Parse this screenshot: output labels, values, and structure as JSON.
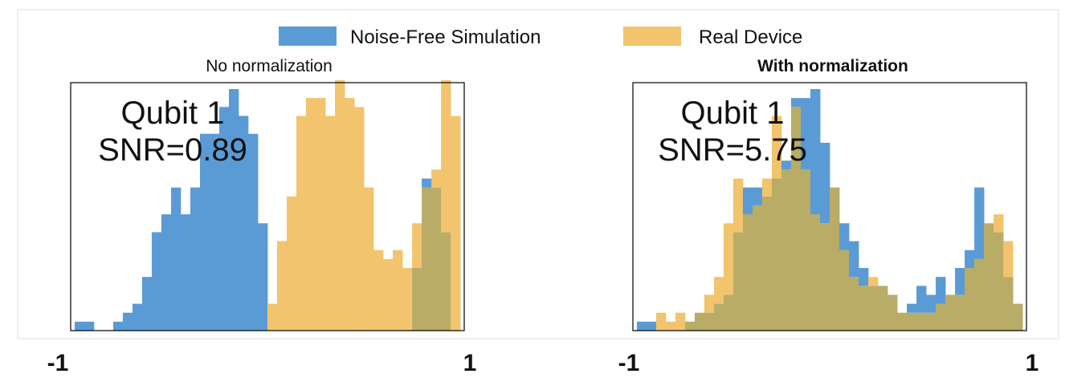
{
  "legend": {
    "position": "top-center",
    "items": [
      {
        "label": "Noise-Free Simulation",
        "color": "#5b9bd5"
      },
      {
        "label": "Real Device",
        "color": "#f2c46d"
      }
    ]
  },
  "overlap_color": "#b9ac67",
  "chart_data": [
    {
      "type": "bar",
      "title": "No normalization",
      "title_bold": false,
      "annotation": [
        "Qubit 1",
        "SNR=0.89"
      ],
      "xlim": [
        -1,
        1
      ],
      "xtick_labels": [
        "-1",
        "1"
      ],
      "ylim": [
        0,
        27
      ],
      "bins": 40,
      "bin_range": [
        -0.98,
        0.98
      ],
      "series": [
        {
          "name": "Noise-Free Simulation",
          "color": "#5b9bd5",
          "values": [
            1,
            1,
            0,
            0,
            1,
            2,
            3,
            6,
            11,
            13,
            16,
            13,
            16,
            22,
            22,
            25,
            27,
            24,
            22,
            12,
            0,
            0,
            0,
            0,
            0,
            0,
            0,
            0,
            0,
            0,
            0,
            0,
            0,
            0,
            0,
            7,
            17,
            16,
            11,
            0
          ]
        },
        {
          "name": "Real Device",
          "color": "#f2c46d",
          "values": [
            0,
            0,
            0,
            0,
            0,
            0,
            0,
            0,
            0,
            0,
            0,
            0,
            0,
            0,
            0,
            0,
            0,
            0,
            0,
            0,
            3,
            10,
            15,
            24,
            26,
            26,
            24,
            28,
            26,
            25,
            16,
            9,
            8,
            9,
            7,
            12,
            16,
            18,
            28,
            24
          ]
        }
      ]
    },
    {
      "type": "bar",
      "title": "With normalization",
      "title_bold": true,
      "annotation": [
        "Qubit 1",
        "SNR=5.75"
      ],
      "xlim": [
        -1,
        1
      ],
      "xtick_labels": [
        "-1",
        "1"
      ],
      "ylim": [
        0,
        27
      ],
      "bins": 40,
      "bin_range": [
        -0.98,
        0.98
      ],
      "series": [
        {
          "name": "Noise-Free Simulation",
          "color": "#5b9bd5",
          "values": [
            1,
            1,
            0,
            0,
            0,
            1,
            2,
            2,
            3,
            4,
            11,
            16,
            16,
            15,
            17,
            19,
            26,
            26,
            27,
            21,
            16,
            12,
            10,
            7,
            5,
            5,
            4,
            2,
            3,
            5,
            4,
            6,
            4,
            7,
            9,
            16,
            12,
            11,
            6,
            3
          ]
        },
        {
          "name": "Real Device",
          "color": "#f2c46d",
          "values": [
            0,
            0,
            2,
            1,
            2,
            1,
            2,
            4,
            6,
            12,
            17,
            13,
            14,
            17,
            24,
            18,
            25,
            18,
            13,
            12,
            16,
            9,
            6,
            5,
            6,
            5,
            4,
            2,
            2,
            2,
            2,
            3,
            4,
            4,
            7,
            8,
            12,
            13,
            10,
            3
          ]
        }
      ]
    }
  ]
}
